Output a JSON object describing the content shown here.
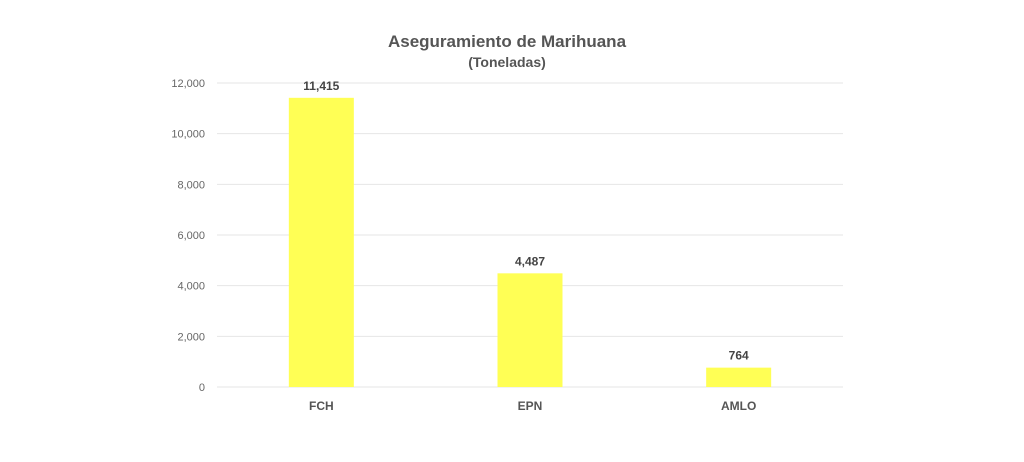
{
  "chart_data": {
    "type": "bar",
    "title": "Aseguramiento de Marihuana",
    "subtitle": "(Toneladas)",
    "categories": [
      "FCH",
      "EPN",
      "AMLO"
    ],
    "values": [
      11415,
      4487,
      764
    ],
    "data_labels": [
      "11,415",
      "4,487",
      "764"
    ],
    "ylim": [
      0,
      12000
    ],
    "yticks": [
      0,
      2000,
      4000,
      6000,
      8000,
      10000,
      12000
    ],
    "ytick_labels": [
      "0",
      "2,000",
      "4,000",
      "6,000",
      "8,000",
      "10,000",
      "12,000"
    ],
    "xlabel": "",
    "ylabel": "",
    "grid": true,
    "legend": "none",
    "bar_color": "#FFFF55"
  }
}
